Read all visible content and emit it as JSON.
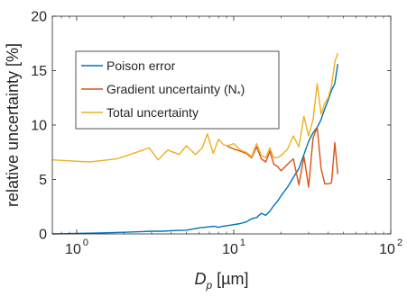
{
  "chart_data": {
    "type": "line",
    "title": "",
    "xlabel": "D_p [µm]",
    "xlabel_main": "D",
    "xlabel_sub": "p",
    "xlabel_unit": " [µm]",
    "ylabel": "relative uncertainty [%]",
    "xscale": "log",
    "xlim": [
      0.7,
      100
    ],
    "ylim": [
      0,
      20
    ],
    "x_ticks": [
      1,
      10,
      100
    ],
    "x_tick_labels": [
      "10",
      "10",
      "10"
    ],
    "x_tick_exponents": [
      "0",
      "1",
      "2"
    ],
    "y_ticks": [
      0,
      5,
      10,
      15,
      20
    ],
    "y_tick_labels": [
      "0",
      "5",
      "10",
      "15",
      "20"
    ],
    "grid": false,
    "legend_position": "top-left",
    "series": [
      {
        "name": "Poison error",
        "color": "#0072BD",
        "x": [
          0.7,
          1.0,
          1.5,
          2.0,
          2.5,
          3.0,
          3.5,
          4.0,
          5.0,
          5.5,
          6.0,
          6.5,
          7.0,
          7.5,
          8.0,
          8.5,
          9.0,
          10.0,
          11.0,
          12.0,
          13.0,
          14.0,
          15.0,
          16.0,
          17.0,
          18.0,
          19.0,
          20.0,
          22.0,
          24.0,
          26.0,
          28.0,
          30.0,
          32.0,
          34.0,
          36.0,
          38.0,
          40.0,
          42.0,
          44.0,
          46.0
        ],
        "y": [
          0.0,
          0.05,
          0.1,
          0.15,
          0.2,
          0.25,
          0.25,
          0.3,
          0.35,
          0.45,
          0.55,
          0.6,
          0.65,
          0.7,
          0.6,
          0.7,
          0.75,
          0.85,
          0.95,
          1.1,
          1.4,
          1.5,
          1.9,
          1.7,
          2.1,
          2.6,
          3.0,
          3.5,
          4.3,
          5.2,
          6.0,
          7.3,
          8.5,
          9.3,
          9.8,
          10.5,
          11.5,
          12.3,
          13.2,
          13.8,
          15.6
        ]
      },
      {
        "name": "Gradient uncertainty (N_*)",
        "color": "#D95319",
        "x": [
          9.0,
          10.0,
          11.0,
          12.0,
          13.0,
          14.0,
          15.0,
          16.0,
          17.0,
          18.0,
          19.0,
          20.0,
          22.0,
          24.0,
          26.0,
          28.0,
          30.0,
          32.0,
          34.0,
          36.0,
          38.0,
          40.0,
          42.0,
          44.0,
          46.0
        ],
        "y": [
          8.1,
          7.8,
          7.6,
          7.4,
          7.0,
          8.0,
          6.9,
          6.6,
          7.6,
          6.4,
          6.2,
          5.8,
          6.4,
          6.9,
          4.5,
          7.1,
          4.3,
          8.8,
          9.8,
          6.0,
          4.6,
          4.6,
          4.7,
          8.4,
          5.5
        ]
      },
      {
        "name": "Total uncertainty",
        "color": "#EDB120",
        "x": [
          0.7,
          1.2,
          1.8,
          2.4,
          2.9,
          3.3,
          3.8,
          4.5,
          5.0,
          5.7,
          6.3,
          6.8,
          7.4,
          8.0,
          8.6,
          9.2,
          10.0,
          11.0,
          12.0,
          13.0,
          14.0,
          15.0,
          16.0,
          17.0,
          18.0,
          19.0,
          20.0,
          22.0,
          24.0,
          26.0,
          28.0,
          30.0,
          32.0,
          34.0,
          36.0,
          38.0,
          40.0,
          42.0,
          44.0,
          46.0
        ],
        "y": [
          6.8,
          6.6,
          6.9,
          7.5,
          7.9,
          6.8,
          7.7,
          7.3,
          8.1,
          7.3,
          7.9,
          9.2,
          7.4,
          8.7,
          8.2,
          8.1,
          8.3,
          7.7,
          7.5,
          7.1,
          8.3,
          7.2,
          7.0,
          7.9,
          7.0,
          7.0,
          7.2,
          7.8,
          9.0,
          8.0,
          10.8,
          9.0,
          10.5,
          13.8,
          11.0,
          12.0,
          12.5,
          13.6,
          15.8,
          16.6
        ]
      }
    ]
  }
}
